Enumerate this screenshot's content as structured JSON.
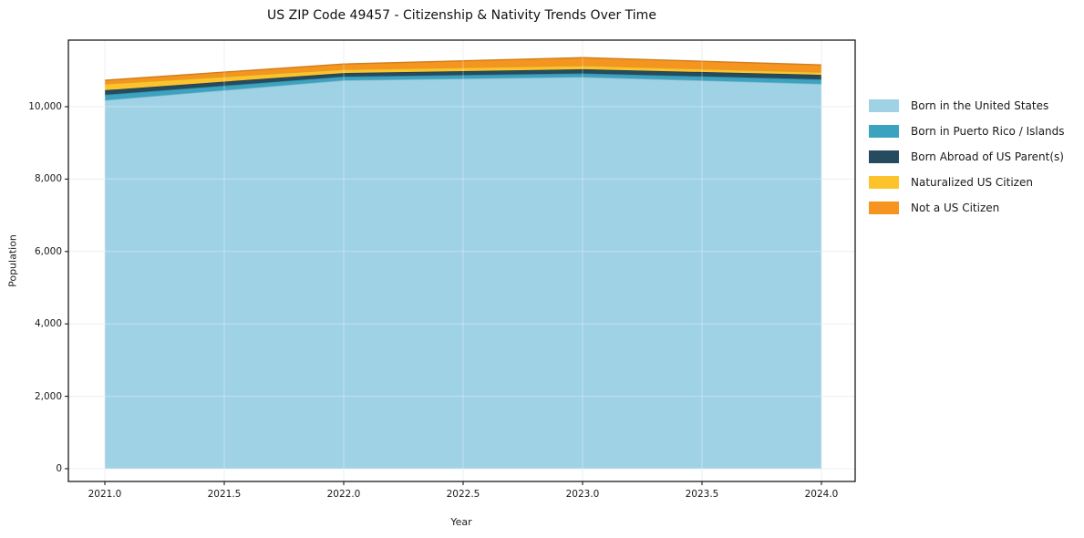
{
  "title": "US ZIP Code 49457 - Citizenship & Nativity Trends Over Time",
  "chart_data": {
    "type": "area",
    "stacked": true,
    "title": "US ZIP Code 49457 - Citizenship & Nativity Trends Over Time",
    "xlabel": "Year",
    "ylabel": "Population",
    "x": [
      2021,
      2022,
      2023,
      2024
    ],
    "series": [
      {
        "name": "Born in the United States",
        "color": "#A0D2E6",
        "values": [
          10180,
          10730,
          10820,
          10630
        ]
      },
      {
        "name": "Born in Puerto Rico / Islands",
        "color": "#3BA3C0",
        "values": [
          150,
          100,
          100,
          125
        ]
      },
      {
        "name": "Born Abroad of US Parent(s)",
        "color": "#264B5E",
        "values": [
          125,
          100,
          115,
          125
        ]
      },
      {
        "name": "Naturalized US Citizen",
        "color": "#FCC32D",
        "values": [
          175,
          100,
          100,
          75
        ]
      },
      {
        "name": "Not a US Citizen",
        "color": "#F5941F",
        "values": [
          100,
          150,
          220,
          200
        ]
      }
    ],
    "x_ticks": [
      {
        "v": 2021.0,
        "label": "2021.0"
      },
      {
        "v": 2021.5,
        "label": "2021.5"
      },
      {
        "v": 2022.0,
        "label": "2022.0"
      },
      {
        "v": 2022.5,
        "label": "2022.5"
      },
      {
        "v": 2023.0,
        "label": "2023.0"
      },
      {
        "v": 2023.5,
        "label": "2023.5"
      },
      {
        "v": 2024.0,
        "label": "2024.0"
      }
    ],
    "y_ticks": [
      {
        "v": 0,
        "label": "0"
      },
      {
        "v": 2000,
        "label": "2,000"
      },
      {
        "v": 4000,
        "label": "4,000"
      },
      {
        "v": 6000,
        "label": "6,000"
      },
      {
        "v": 8000,
        "label": "8,000"
      },
      {
        "v": 10000,
        "label": "10,000"
      }
    ],
    "xlim": [
      2020.85,
      2024.15
    ],
    "ylim": [
      -350,
      11840
    ],
    "grid": true,
    "legend_position": "right-outside"
  }
}
